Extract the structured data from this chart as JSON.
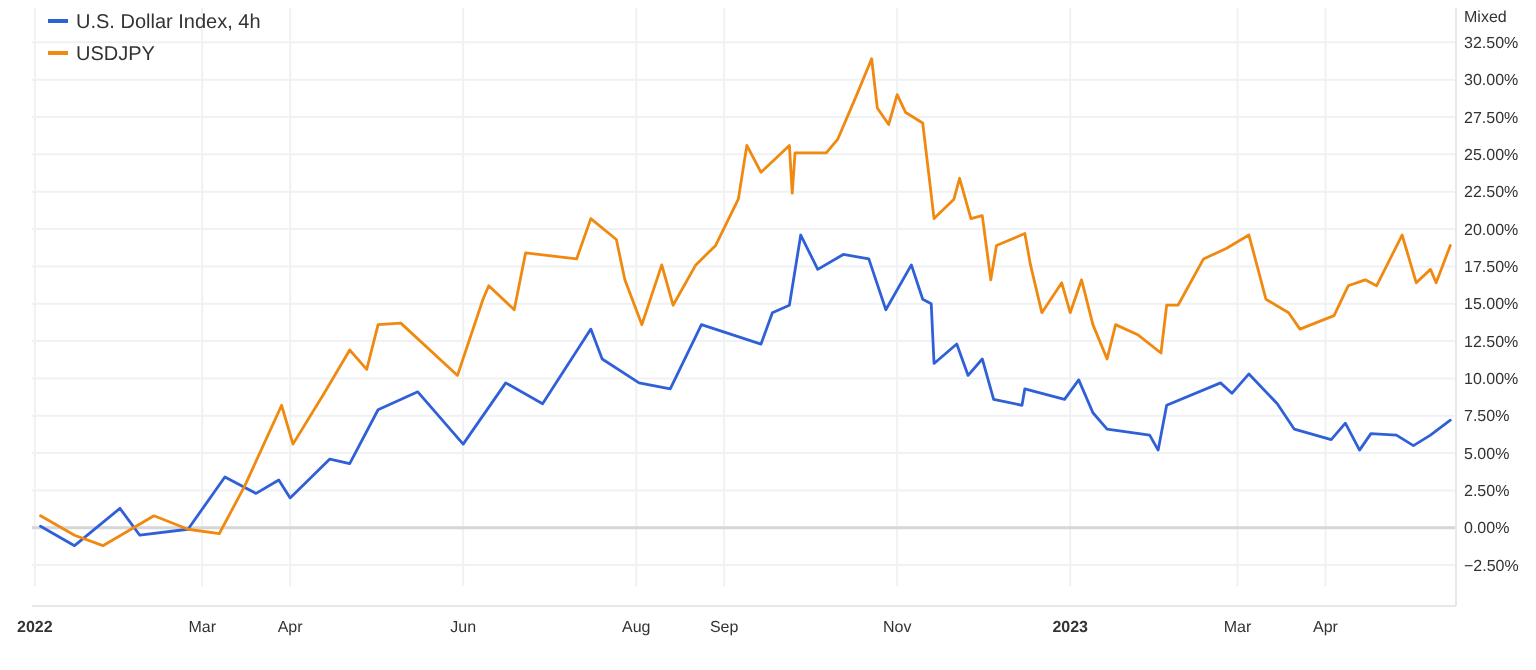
{
  "chart_data": {
    "type": "line",
    "ylabel": "Mixed",
    "legend": "top left",
    "grid": true,
    "line_style": "solid",
    "marker": "none",
    "xlim": [
      "2021-12-31",
      "2023-05-17"
    ],
    "xticks": [
      {
        "value": "2022-01-01",
        "label": "2022"
      },
      {
        "value": "2022-03-01",
        "label": "Mar"
      },
      {
        "value": "2022-04-01",
        "label": "Apr"
      },
      {
        "value": "2022-06-01",
        "label": "Jun"
      },
      {
        "value": "2022-08-01",
        "label": "Aug"
      },
      {
        "value": "2022-09-01",
        "label": "Sep"
      },
      {
        "value": "2022-11-01",
        "label": "Nov"
      },
      {
        "value": "2023-01-01",
        "label": "2023"
      },
      {
        "value": "2023-03-01",
        "label": "Mar"
      },
      {
        "value": "2023-04-01",
        "label": "Apr"
      }
    ],
    "ylim": [
      -3.9,
      34.8
    ],
    "yticks": [
      {
        "value": -2.5,
        "label": "−2.50%"
      },
      {
        "value": 0,
        "label": "0.00%"
      },
      {
        "value": 2.5,
        "label": "2.50%"
      },
      {
        "value": 5,
        "label": "5.00%"
      },
      {
        "value": 7.5,
        "label": "7.50%"
      },
      {
        "value": 10,
        "label": "10.00%"
      },
      {
        "value": 12.5,
        "label": "12.50%"
      },
      {
        "value": 15,
        "label": "15.00%"
      },
      {
        "value": 17.5,
        "label": "17.50%"
      },
      {
        "value": 20,
        "label": "20.00%"
      },
      {
        "value": 22.5,
        "label": "22.50%"
      },
      {
        "value": 25,
        "label": "25.00%"
      },
      {
        "value": 27.5,
        "label": "27.50%"
      },
      {
        "value": 30,
        "label": "30.00%"
      },
      {
        "value": 32.5,
        "label": "32.50%"
      }
    ],
    "ref_lines": [
      {
        "axis": "y",
        "value": 0,
        "color": "#d6d6d6"
      }
    ],
    "series": [
      {
        "name": "U.S. Dollar Index, 4h",
        "color": "#3060d8",
        "x": [
          "2022-01-03",
          "2022-01-15",
          "2022-01-31",
          "2022-02-07",
          "2022-02-24",
          "2022-03-09",
          "2022-03-20",
          "2022-03-28",
          "2022-04-01",
          "2022-04-15",
          "2022-04-22",
          "2022-05-02",
          "2022-05-16",
          "2022-06-01",
          "2022-06-16",
          "2022-06-29",
          "2022-07-16",
          "2022-07-20",
          "2022-08-02",
          "2022-08-13",
          "2022-08-24",
          "2022-09-14",
          "2022-09-18",
          "2022-09-24",
          "2022-09-28",
          "2022-10-04",
          "2022-10-13",
          "2022-10-22",
          "2022-10-28",
          "2022-11-06",
          "2022-11-10",
          "2022-11-13",
          "2022-11-14",
          "2022-11-22",
          "2022-11-26",
          "2022-12-01",
          "2022-12-05",
          "2022-12-15",
          "2022-12-16",
          "2022-12-30",
          "2023-01-04",
          "2023-01-09",
          "2023-01-14",
          "2023-01-29",
          "2023-02-01",
          "2023-02-04",
          "2023-02-23",
          "2023-02-27",
          "2023-03-05",
          "2023-03-15",
          "2023-03-21",
          "2023-04-03",
          "2023-04-08",
          "2023-04-13",
          "2023-04-17",
          "2023-04-26",
          "2023-05-02",
          "2023-05-08",
          "2023-05-15"
        ],
        "values": [
          0.1,
          -1.2,
          1.3,
          -0.5,
          -0.1,
          3.4,
          2.3,
          3.2,
          2.0,
          4.6,
          4.3,
          7.9,
          9.1,
          5.6,
          9.7,
          8.3,
          13.3,
          11.3,
          9.7,
          9.3,
          13.6,
          12.3,
          14.4,
          14.9,
          19.6,
          17.3,
          18.3,
          18.0,
          14.6,
          17.6,
          15.3,
          15.0,
          11.0,
          12.3,
          10.2,
          11.3,
          8.6,
          8.2,
          9.3,
          8.6,
          9.9,
          7.7,
          6.6,
          6.2,
          5.2,
          8.2,
          9.7,
          9.0,
          10.3,
          8.3,
          6.6,
          5.9,
          7.0,
          5.2,
          6.3,
          6.2,
          5.5,
          6.2,
          7.2
        ]
      },
      {
        "name": "USDJPY",
        "color": "#f0890f",
        "x": [
          "2022-01-03",
          "2022-01-15",
          "2022-01-25",
          "2022-02-12",
          "2022-02-24",
          "2022-03-07",
          "2022-03-16",
          "2022-03-29",
          "2022-04-02",
          "2022-04-13",
          "2022-04-22",
          "2022-04-28",
          "2022-05-02",
          "2022-05-10",
          "2022-05-30",
          "2022-06-08",
          "2022-06-10",
          "2022-06-19",
          "2022-06-23",
          "2022-07-11",
          "2022-07-16",
          "2022-07-25",
          "2022-07-28",
          "2022-08-03",
          "2022-08-10",
          "2022-08-14",
          "2022-08-22",
          "2022-08-29",
          "2022-09-06",
          "2022-09-09",
          "2022-09-14",
          "2022-09-24",
          "2022-09-25",
          "2022-09-26",
          "2022-10-07",
          "2022-10-11",
          "2022-10-18",
          "2022-10-23",
          "2022-10-25",
          "2022-10-29",
          "2022-11-01",
          "2022-11-04",
          "2022-11-10",
          "2022-11-14",
          "2022-11-21",
          "2022-11-23",
          "2022-11-27",
          "2022-12-01",
          "2022-12-04",
          "2022-12-06",
          "2022-12-16",
          "2022-12-18",
          "2022-12-22",
          "2022-12-29",
          "2023-01-01",
          "2023-01-05",
          "2023-01-09",
          "2023-01-14",
          "2023-01-17",
          "2023-01-25",
          "2023-02-02",
          "2023-02-04",
          "2023-02-08",
          "2023-02-17",
          "2023-02-25",
          "2023-03-05",
          "2023-03-11",
          "2023-03-19",
          "2023-03-23",
          "2023-04-04",
          "2023-04-09",
          "2023-04-15",
          "2023-04-19",
          "2023-04-28",
          "2023-05-03",
          "2023-05-08",
          "2023-05-10",
          "2023-05-15"
        ],
        "values": [
          0.8,
          -0.5,
          -1.2,
          0.8,
          -0.1,
          -0.4,
          2.8,
          8.2,
          5.6,
          9.0,
          11.9,
          10.6,
          13.6,
          13.7,
          10.2,
          15.3,
          16.2,
          14.6,
          18.4,
          18.0,
          20.7,
          19.3,
          16.6,
          13.6,
          17.6,
          14.9,
          17.6,
          18.9,
          22.0,
          25.6,
          23.8,
          25.6,
          22.4,
          25.1,
          25.1,
          26.0,
          29.1,
          31.4,
          28.1,
          27.0,
          29.0,
          27.8,
          27.1,
          20.7,
          22.0,
          23.4,
          20.7,
          20.9,
          16.6,
          18.9,
          19.7,
          17.6,
          14.4,
          16.4,
          14.4,
          16.6,
          13.6,
          11.3,
          13.6,
          12.9,
          11.7,
          14.9,
          14.9,
          18.0,
          18.7,
          19.6,
          15.3,
          14.4,
          13.3,
          14.2,
          16.2,
          16.6,
          16.2,
          19.6,
          16.4,
          17.3,
          16.4,
          18.9
        ]
      }
    ]
  }
}
